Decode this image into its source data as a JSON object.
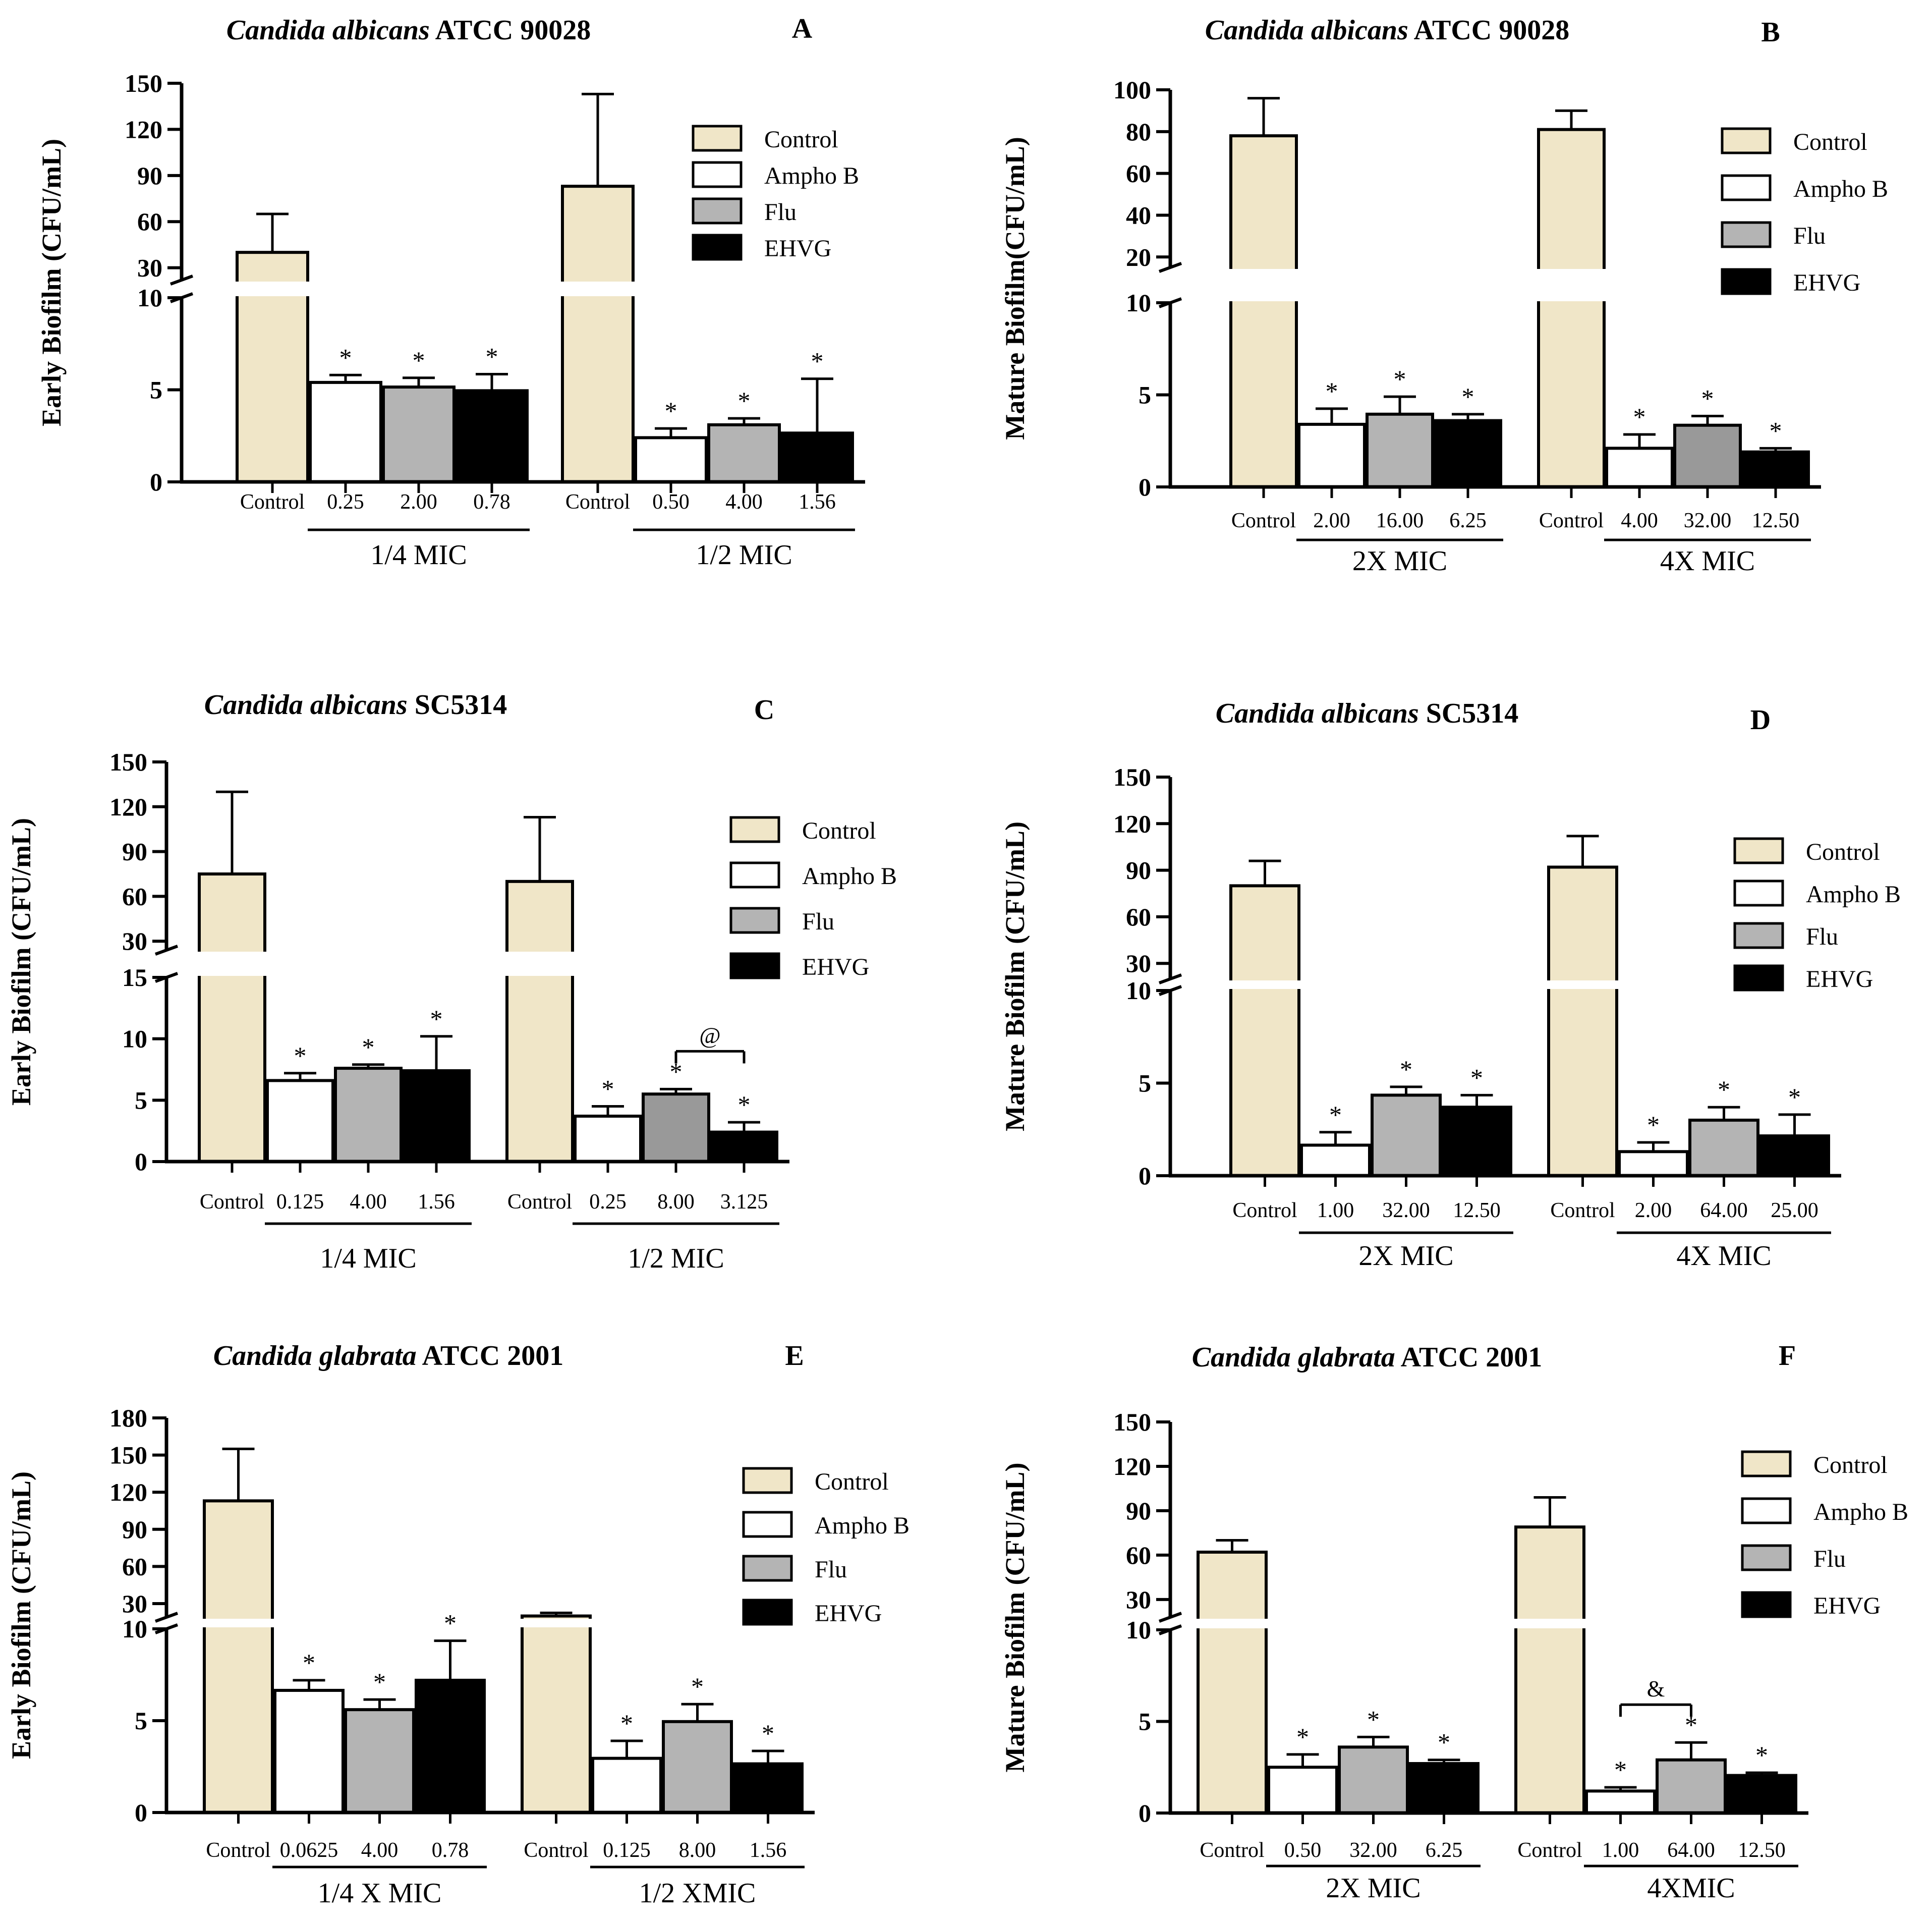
{
  "colors": {
    "Control": "#f0e6c8",
    "Ampho B": "#ffffff",
    "Flu": "#b4b4b4",
    "Flu_dark": "#999999",
    "EHVG": "#000000",
    "axis": "#000000"
  },
  "chart_data": [
    {
      "type": "bar",
      "panel": "A",
      "title_italic": "Candida albicans",
      "title_rest": " ATCC 90028",
      "ylabel": "Early Biofilm  (CFU/mL)",
      "legend": [
        "Control",
        "Ampho B",
        "Flu",
        "EHVG"
      ],
      "broken_axis": {
        "lower_range": [
          0,
          10
        ],
        "lower_ticks": [
          0,
          5,
          10
        ],
        "upper_range": [
          22,
          150
        ],
        "upper_ticks": [
          30,
          60,
          90,
          120,
          150
        ]
      },
      "groups": [
        {
          "label": "1/4 MIC",
          "categories": [
            "Control",
            "0.25",
            "2.00",
            "0.78"
          ],
          "series": [
            "Control",
            "Ampho B",
            "Flu",
            "EHVG"
          ],
          "values": [
            40,
            5.4,
            5.15,
            4.95
          ],
          "errors": [
            25,
            0.4,
            0.5,
            0.9
          ],
          "marks": [
            "",
            "*",
            "*",
            "*"
          ]
        },
        {
          "label": "1/2 MIC",
          "categories": [
            "Control",
            "0.50",
            "4.00",
            "1.56"
          ],
          "series": [
            "Control",
            "Ampho B",
            "Flu",
            "EHVG"
          ],
          "values": [
            83,
            2.4,
            3.1,
            2.65
          ],
          "errors": [
            60,
            0.5,
            0.35,
            2.95
          ],
          "marks": [
            "",
            "*",
            "*",
            "*"
          ]
        }
      ]
    },
    {
      "type": "bar",
      "panel": "B",
      "title_italic": "Candida albicans",
      "title_rest": " ATCC 90028",
      "ylabel": "Mature Biofilm(CFU/mL)",
      "legend": [
        "Control",
        "Ampho B",
        "Flu",
        "EHVG"
      ],
      "broken_axis": {
        "lower_range": [
          0,
          10
        ],
        "lower_ticks": [
          0,
          5,
          10
        ],
        "upper_range": [
          15,
          100
        ],
        "upper_ticks": [
          20,
          40,
          60,
          80,
          100
        ]
      },
      "groups": [
        {
          "label": "2X MIC",
          "categories": [
            "Control",
            "2.00",
            "16.00",
            "6.25"
          ],
          "series": [
            "Control",
            "Ampho B",
            "Flu",
            "EHVG"
          ],
          "values": [
            78,
            3.4,
            3.95,
            3.6
          ],
          "errors": [
            18,
            0.85,
            0.95,
            0.35
          ],
          "marks": [
            "",
            "*",
            "*",
            "*"
          ]
        },
        {
          "label": "4X MIC",
          "categories": [
            "Control",
            "4.00",
            "32.00",
            "12.50"
          ],
          "series": [
            "Control",
            "Ampho B",
            "Flu",
            "EHVG"
          ],
          "values": [
            81,
            2.1,
            3.35,
            1.9
          ],
          "errors": [
            9,
            0.75,
            0.5,
            0.2
          ],
          "marks": [
            "",
            "*",
            "*",
            "*"
          ]
        }
      ]
    },
    {
      "type": "bar",
      "panel": "C",
      "title_italic": "Candida albicans",
      "title_rest": " SC5314",
      "ylabel": "Early Biofilm (CFU/mL)",
      "legend": [
        "Control",
        "Ampho B",
        "Flu",
        "EHVG"
      ],
      "broken_axis": {
        "lower_range": [
          0,
          15
        ],
        "lower_ticks": [
          0,
          5,
          10,
          15
        ],
        "upper_range": [
          24,
          150
        ],
        "upper_ticks": [
          30,
          60,
          90,
          120,
          150
        ]
      },
      "groups": [
        {
          "label": "1/4 MIC",
          "categories": [
            "Control",
            "0.125",
            "4.00",
            "1.56"
          ],
          "series": [
            "Control",
            "Ampho B",
            "Flu",
            "EHVG"
          ],
          "values": [
            75,
            6.6,
            7.6,
            7.4
          ],
          "errors": [
            55,
            0.6,
            0.3,
            2.8
          ],
          "marks": [
            "",
            "*",
            "*",
            "*"
          ]
        },
        {
          "label": "1/2 MIC",
          "categories": [
            "Control",
            "0.25",
            "8.00",
            "3.125"
          ],
          "series": [
            "Control",
            "Ampho B",
            "Flu",
            "EHVG"
          ],
          "values": [
            70,
            3.7,
            5.5,
            2.4
          ],
          "errors": [
            43,
            0.8,
            0.4,
            0.8
          ],
          "marks": [
            "",
            "*",
            "*",
            "*"
          ]
        }
      ],
      "annotations": [
        {
          "text": "@",
          "group": 1,
          "from_bar": 2,
          "to_bar": 3
        }
      ]
    },
    {
      "type": "bar",
      "panel": "D",
      "title_italic": "Candida albicans",
      "title_rest": " SC5314",
      "ylabel": "Mature Biofilm (CFU/mL)",
      "legend": [
        "Control",
        "Ampho B",
        "Flu",
        "EHVG"
      ],
      "broken_axis": {
        "lower_range": [
          0,
          10
        ],
        "lower_ticks": [
          0,
          5,
          10
        ],
        "upper_range": [
          20,
          150
        ],
        "upper_ticks": [
          30,
          60,
          90,
          120,
          150
        ]
      },
      "groups": [
        {
          "label": "2X MIC",
          "categories": [
            "Control",
            "1.00",
            "32.00",
            "12.50"
          ],
          "series": [
            "Control",
            "Ampho B",
            "Flu",
            "EHVG"
          ],
          "values": [
            80,
            1.65,
            4.35,
            3.7
          ],
          "errors": [
            16,
            0.7,
            0.45,
            0.65
          ],
          "marks": [
            "",
            "*",
            "*",
            "*"
          ]
        },
        {
          "label": "4X MIC",
          "categories": [
            "Control",
            "2.00",
            "64.00",
            "25.00"
          ],
          "series": [
            "Control",
            "Ampho B",
            "Flu",
            "EHVG"
          ],
          "values": [
            92,
            1.3,
            3.0,
            2.15
          ],
          "errors": [
            20,
            0.5,
            0.7,
            1.15
          ],
          "marks": [
            "",
            "*",
            "*",
            "*"
          ]
        }
      ]
    },
    {
      "type": "bar",
      "panel": "E",
      "title_italic": "Candida glabrata",
      "title_rest": " ATCC 2001",
      "ylabel": "Early Biofilm (CFU/mL)",
      "legend": [
        "Control",
        "Ampho B",
        "Flu",
        "EHVG"
      ],
      "broken_axis": {
        "lower_range": [
          0,
          10
        ],
        "lower_ticks": [
          0,
          5,
          10
        ],
        "upper_range": [
          19,
          180
        ],
        "upper_ticks": [
          30,
          60,
          90,
          120,
          150,
          180
        ]
      },
      "groups": [
        {
          "label": "1/4 X MIC",
          "categories": [
            "Control",
            "0.0625",
            "4.00",
            "0.78"
          ],
          "series": [
            "Control",
            "Ampho B",
            "Flu",
            "EHVG"
          ],
          "values": [
            113,
            6.65,
            5.6,
            7.2
          ],
          "errors": [
            42,
            0.55,
            0.55,
            2.15
          ],
          "marks": [
            "",
            "*",
            "*",
            "*"
          ]
        },
        {
          "label": "1/2 XMIC",
          "categories": [
            "Control",
            "0.125",
            "8.00",
            "1.56"
          ],
          "series": [
            "Control",
            "Ampho B",
            "Flu",
            "EHVG"
          ],
          "values": [
            20,
            2.95,
            4.95,
            2.65
          ],
          "errors": [
            2.5,
            0.95,
            0.95,
            0.7
          ],
          "marks": [
            "",
            "*",
            "*",
            "*"
          ]
        }
      ]
    },
    {
      "type": "bar",
      "panel": "F",
      "title_italic": "Candida glabrata",
      "title_rest": " ATCC 2001",
      "ylabel": "Mature Biofilm (CFU/mL)",
      "legend": [
        "Control",
        "Ampho B",
        "Flu",
        "EHVG"
      ],
      "broken_axis": {
        "lower_range": [
          0,
          10
        ],
        "lower_ticks": [
          0,
          5,
          10
        ],
        "upper_range": [
          18,
          150
        ],
        "upper_ticks": [
          30,
          60,
          90,
          120,
          150
        ]
      },
      "groups": [
        {
          "label": "2X MIC",
          "categories": [
            "Control",
            "0.50",
            "32.00",
            "6.25"
          ],
          "series": [
            "Control",
            "Ampho B",
            "Flu",
            "EHVG"
          ],
          "values": [
            62,
            2.5,
            3.6,
            2.7
          ],
          "errors": [
            8,
            0.7,
            0.55,
            0.2
          ],
          "marks": [
            "",
            "*",
            "*",
            "*"
          ]
        },
        {
          "label": "4XMIC",
          "categories": [
            "Control",
            "1.00",
            "64.00",
            "12.50"
          ],
          "series": [
            "Control",
            "Ampho B",
            "Flu",
            "EHVG"
          ],
          "values": [
            79,
            1.2,
            2.9,
            2.05
          ],
          "errors": [
            20,
            0.2,
            0.95,
            0.15
          ],
          "marks": [
            "",
            "*",
            "*",
            "*"
          ]
        }
      ],
      "annotations": [
        {
          "text": "&",
          "group": 1,
          "from_bar": 1,
          "to_bar": 2
        }
      ]
    }
  ]
}
